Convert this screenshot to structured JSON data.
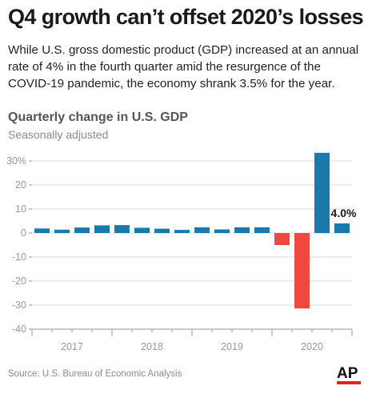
{
  "headline": "Q4 growth can’t offset 2020’s losses",
  "intro": "While U.S. gross domestic product (GDP) increased at an annual rate of 4% in the fourth quarter amid the resurgence of the COVID-19 pandemic, the economy shrank 3.5% for the year.",
  "chart_data": {
    "type": "bar",
    "title": "Quarterly change in U.S. GDP",
    "subtitle": "Seasonally adjusted",
    "xlabel": "",
    "ylabel": "",
    "ylim": [
      -40,
      33
    ],
    "yticks": [
      {
        "value": 30,
        "label": "30%"
      },
      {
        "value": 20,
        "label": "20"
      },
      {
        "value": 10,
        "label": "10"
      },
      {
        "value": 0,
        "label": "0"
      },
      {
        "value": -10,
        "label": "-10"
      },
      {
        "value": -20,
        "label": "-20"
      },
      {
        "value": -30,
        "label": "-30"
      },
      {
        "value": -40,
        "label": "-40"
      }
    ],
    "year_labels": [
      "2017",
      "2018",
      "2019",
      "2020"
    ],
    "categories": [
      "2017 Q1",
      "2017 Q2",
      "2017 Q3",
      "2017 Q4",
      "2018 Q1",
      "2018 Q2",
      "2018 Q3",
      "2018 Q4",
      "2019 Q1",
      "2019 Q2",
      "2019 Q3",
      "2019 Q4",
      "2020 Q1",
      "2020 Q2",
      "2020 Q3",
      "2020 Q4"
    ],
    "values": [
      1.9,
      1.4,
      2.3,
      3.2,
      3.3,
      2.2,
      1.8,
      1.3,
      2.4,
      1.5,
      2.4,
      2.4,
      -5.0,
      -31.4,
      33.4,
      4.0
    ],
    "annotation": {
      "category": "2020 Q4",
      "label": "4.0%"
    },
    "grid": "horizontal",
    "colors": {
      "positive": "#1a7aab",
      "negative": "#f2473f",
      "grid": "#d9d9d9",
      "tick": "#999999"
    }
  },
  "footer": {
    "source": "Source: U.S. Bureau of Economic Analysis",
    "logo": "AP"
  }
}
